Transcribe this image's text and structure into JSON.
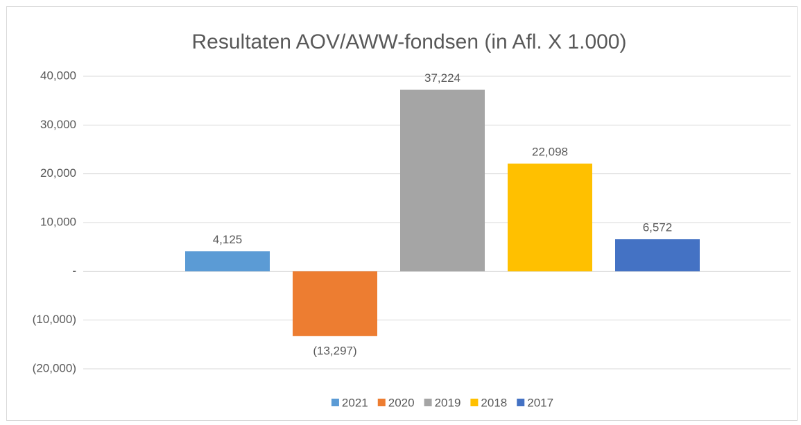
{
  "chart_data": {
    "type": "bar",
    "title": "Resultaten AOV/AWW-fondsen (in Afl. X 1.000)",
    "categories": [
      null
    ],
    "series": [
      {
        "name": "2021",
        "color": "#5b9bd5",
        "values": [
          4125
        ],
        "value_labels": [
          "4,125"
        ]
      },
      {
        "name": "2020",
        "color": "#ed7d31",
        "values": [
          -13297
        ],
        "value_labels": [
          "(13,297)"
        ]
      },
      {
        "name": "2019",
        "color": "#a5a5a5",
        "values": [
          37224
        ],
        "value_labels": [
          "37,224"
        ]
      },
      {
        "name": "2018",
        "color": "#ffc000",
        "values": [
          22098
        ],
        "value_labels": [
          "22,098"
        ]
      },
      {
        "name": "2017",
        "color": "#4472c4",
        "values": [
          6572
        ],
        "value_labels": [
          "6,572"
        ]
      }
    ],
    "ylim": [
      -20000,
      40000
    ],
    "yticks": [
      {
        "value": -20000,
        "label": "(20,000)"
      },
      {
        "value": -10000,
        "label": "(10,000)"
      },
      {
        "value": 0,
        "label": "-"
      },
      {
        "value": 10000,
        "label": "10,000"
      },
      {
        "value": 20000,
        "label": "20,000"
      },
      {
        "value": 30000,
        "label": "30,000"
      },
      {
        "value": 40000,
        "label": "40,000"
      }
    ],
    "grid": true,
    "legend": "bottom"
  }
}
